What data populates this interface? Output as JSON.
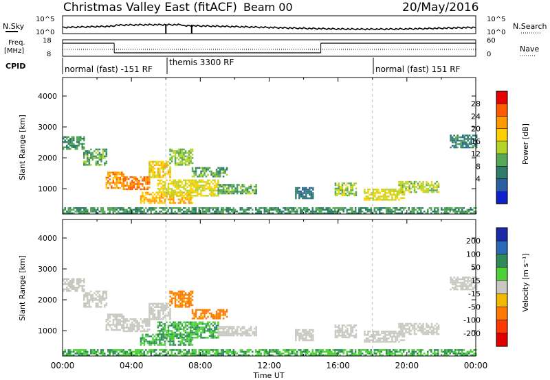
{
  "header": {
    "title": "Christmas Valley East (fitACF)",
    "beam": "Beam 00",
    "date": "20/May/2016"
  },
  "top_panels": {
    "nsky_label": "N.Sky",
    "nsky_ticks": [
      "10^5",
      "10^0"
    ],
    "nsearch_label": "N.Search",
    "nsearch_ticks": [
      "10^5",
      "10^0"
    ],
    "freq_label": "Freq.",
    "freq_unit": "[MHz]",
    "freq_ticks": [
      "18",
      "8"
    ],
    "nave_label": "Nave",
    "nave_ticks": [
      "60",
      "0"
    ],
    "cpid_label": "CPID",
    "cpid_segments": [
      {
        "label": "normal (fast) -151 RF",
        "start_h": 0,
        "end_h": 6
      },
      {
        "label": "themis 3300 RF",
        "start_h": 6,
        "end_h": 18
      },
      {
        "label": "normal (fast) 151 RF",
        "start_h": 18,
        "end_h": 24
      }
    ],
    "freq_steps": [
      {
        "start_h": 0,
        "end_h": 3,
        "level": "high"
      },
      {
        "start_h": 3,
        "end_h": 15,
        "level": "low"
      },
      {
        "start_h": 15,
        "end_h": 24,
        "level": "high"
      }
    ]
  },
  "axes": {
    "ylabel": "Slant Range [km]",
    "xlabel": "Time UT",
    "yticks": [
      "4000",
      "3000",
      "2000",
      "1000"
    ],
    "xticks": [
      "00:00",
      "04:00",
      "08:00",
      "12:00",
      "16:00",
      "20:00",
      "00:00"
    ]
  },
  "colorbars": {
    "power": {
      "label": "Power [dB]",
      "ticks": [
        "28",
        "24",
        "20",
        "16",
        "12",
        "8",
        "4"
      ],
      "colors": [
        "#e60000",
        "#ff5a00",
        "#ff9a00",
        "#ffd000",
        "#b4d42a",
        "#55a855",
        "#2e7d6a",
        "#2a5fa0",
        "#1020c8"
      ]
    },
    "velocity": {
      "label": "Velocity [m s⁻¹]",
      "ticks": [
        "200",
        "100",
        "50",
        "15",
        "-15",
        "-50",
        "-100",
        "-200"
      ],
      "colors": [
        "#1a2aa8",
        "#2a68b8",
        "#2e8a5a",
        "#4fd13a",
        "#c8c8c0",
        "#f5b800",
        "#ff7a00",
        "#ff3a00",
        "#e00000"
      ]
    }
  },
  "chart_data": [
    {
      "type": "heatmap",
      "title": "Power [dB]",
      "xlabel": "Time UT",
      "ylabel": "Slant Range [km]",
      "xlim": [
        0,
        24
      ],
      "ylim": [
        180,
        4600
      ],
      "bands": [
        {
          "t0": 0,
          "t1": 1.2,
          "r0": 2300,
          "r1": 2700,
          "power": 10
        },
        {
          "t0": 1.2,
          "t1": 2.5,
          "r0": 1800,
          "r1": 2300,
          "power": 12
        },
        {
          "t0": 2.5,
          "t1": 3.5,
          "r0": 1050,
          "r1": 1550,
          "power": 24
        },
        {
          "t0": 3.5,
          "t1": 5.0,
          "r0": 1000,
          "r1": 1400,
          "power": 26
        },
        {
          "t0": 5.0,
          "t1": 6.2,
          "r0": 1350,
          "r1": 1900,
          "power": 20
        },
        {
          "t0": 6.2,
          "t1": 7.5,
          "r0": 1800,
          "r1": 2300,
          "power": 14
        },
        {
          "t0": 7.5,
          "t1": 9.5,
          "r0": 1400,
          "r1": 1700,
          "power": 12
        },
        {
          "t0": 4.5,
          "t1": 7.5,
          "r0": 550,
          "r1": 900,
          "power": 22
        },
        {
          "t0": 5.5,
          "t1": 9.0,
          "r0": 800,
          "r1": 1300,
          "power": 18
        },
        {
          "t0": 9.0,
          "t1": 11.2,
          "r0": 850,
          "r1": 1150,
          "power": 12
        },
        {
          "t0": 13.5,
          "t1": 14.5,
          "r0": 700,
          "r1": 1050,
          "power": 6
        },
        {
          "t0": 15.8,
          "t1": 17.0,
          "r0": 800,
          "r1": 1200,
          "power": 16
        },
        {
          "t0": 17.5,
          "t1": 19.8,
          "r0": 650,
          "r1": 1000,
          "power": 18
        },
        {
          "t0": 19.5,
          "t1": 21.8,
          "r0": 900,
          "r1": 1250,
          "power": 16
        },
        {
          "t0": 22.5,
          "t1": 24,
          "r0": 2350,
          "r1": 2750,
          "power": 8
        },
        {
          "t0": 0,
          "t1": 24,
          "r0": 200,
          "r1": 400,
          "power": 10
        }
      ]
    },
    {
      "type": "heatmap",
      "title": "Velocity [m s⁻¹]",
      "xlabel": "Time UT",
      "ylabel": "Slant Range [km]",
      "xlim": [
        0,
        24
      ],
      "ylim": [
        180,
        4600
      ],
      "bands": [
        {
          "t0": 0,
          "t1": 1.2,
          "r0": 2300,
          "r1": 2700,
          "vel": 0
        },
        {
          "t0": 1.2,
          "t1": 2.5,
          "r0": 1800,
          "r1": 2300,
          "vel": 0
        },
        {
          "t0": 2.5,
          "t1": 3.5,
          "r0": 1050,
          "r1": 1550,
          "vel": 0
        },
        {
          "t0": 3.5,
          "t1": 5.0,
          "r0": 1000,
          "r1": 1400,
          "vel": 0
        },
        {
          "t0": 5.0,
          "t1": 6.2,
          "r0": 1350,
          "r1": 1900,
          "vel": 0
        },
        {
          "t0": 6.2,
          "t1": 7.5,
          "r0": 1800,
          "r1": 2300,
          "vel": -40
        },
        {
          "t0": 7.5,
          "t1": 9.5,
          "r0": 1400,
          "r1": 1700,
          "vel": -40
        },
        {
          "t0": 4.5,
          "t1": 7.5,
          "r0": 550,
          "r1": 900,
          "vel": 30
        },
        {
          "t0": 5.5,
          "t1": 9.0,
          "r0": 800,
          "r1": 1300,
          "vel": 30
        },
        {
          "t0": 9.0,
          "t1": 11.2,
          "r0": 850,
          "r1": 1150,
          "vel": 0
        },
        {
          "t0": 13.5,
          "t1": 14.5,
          "r0": 700,
          "r1": 1050,
          "vel": 0
        },
        {
          "t0": 15.8,
          "t1": 17.0,
          "r0": 800,
          "r1": 1200,
          "vel": 0
        },
        {
          "t0": 17.5,
          "t1": 19.8,
          "r0": 650,
          "r1": 1000,
          "vel": 0
        },
        {
          "t0": 19.5,
          "t1": 21.8,
          "r0": 900,
          "r1": 1250,
          "vel": 0
        },
        {
          "t0": 22.5,
          "t1": 24,
          "r0": 2350,
          "r1": 2750,
          "vel": 0
        },
        {
          "t0": 0,
          "t1": 24,
          "r0": 200,
          "r1": 400,
          "vel": 30
        }
      ]
    }
  ]
}
